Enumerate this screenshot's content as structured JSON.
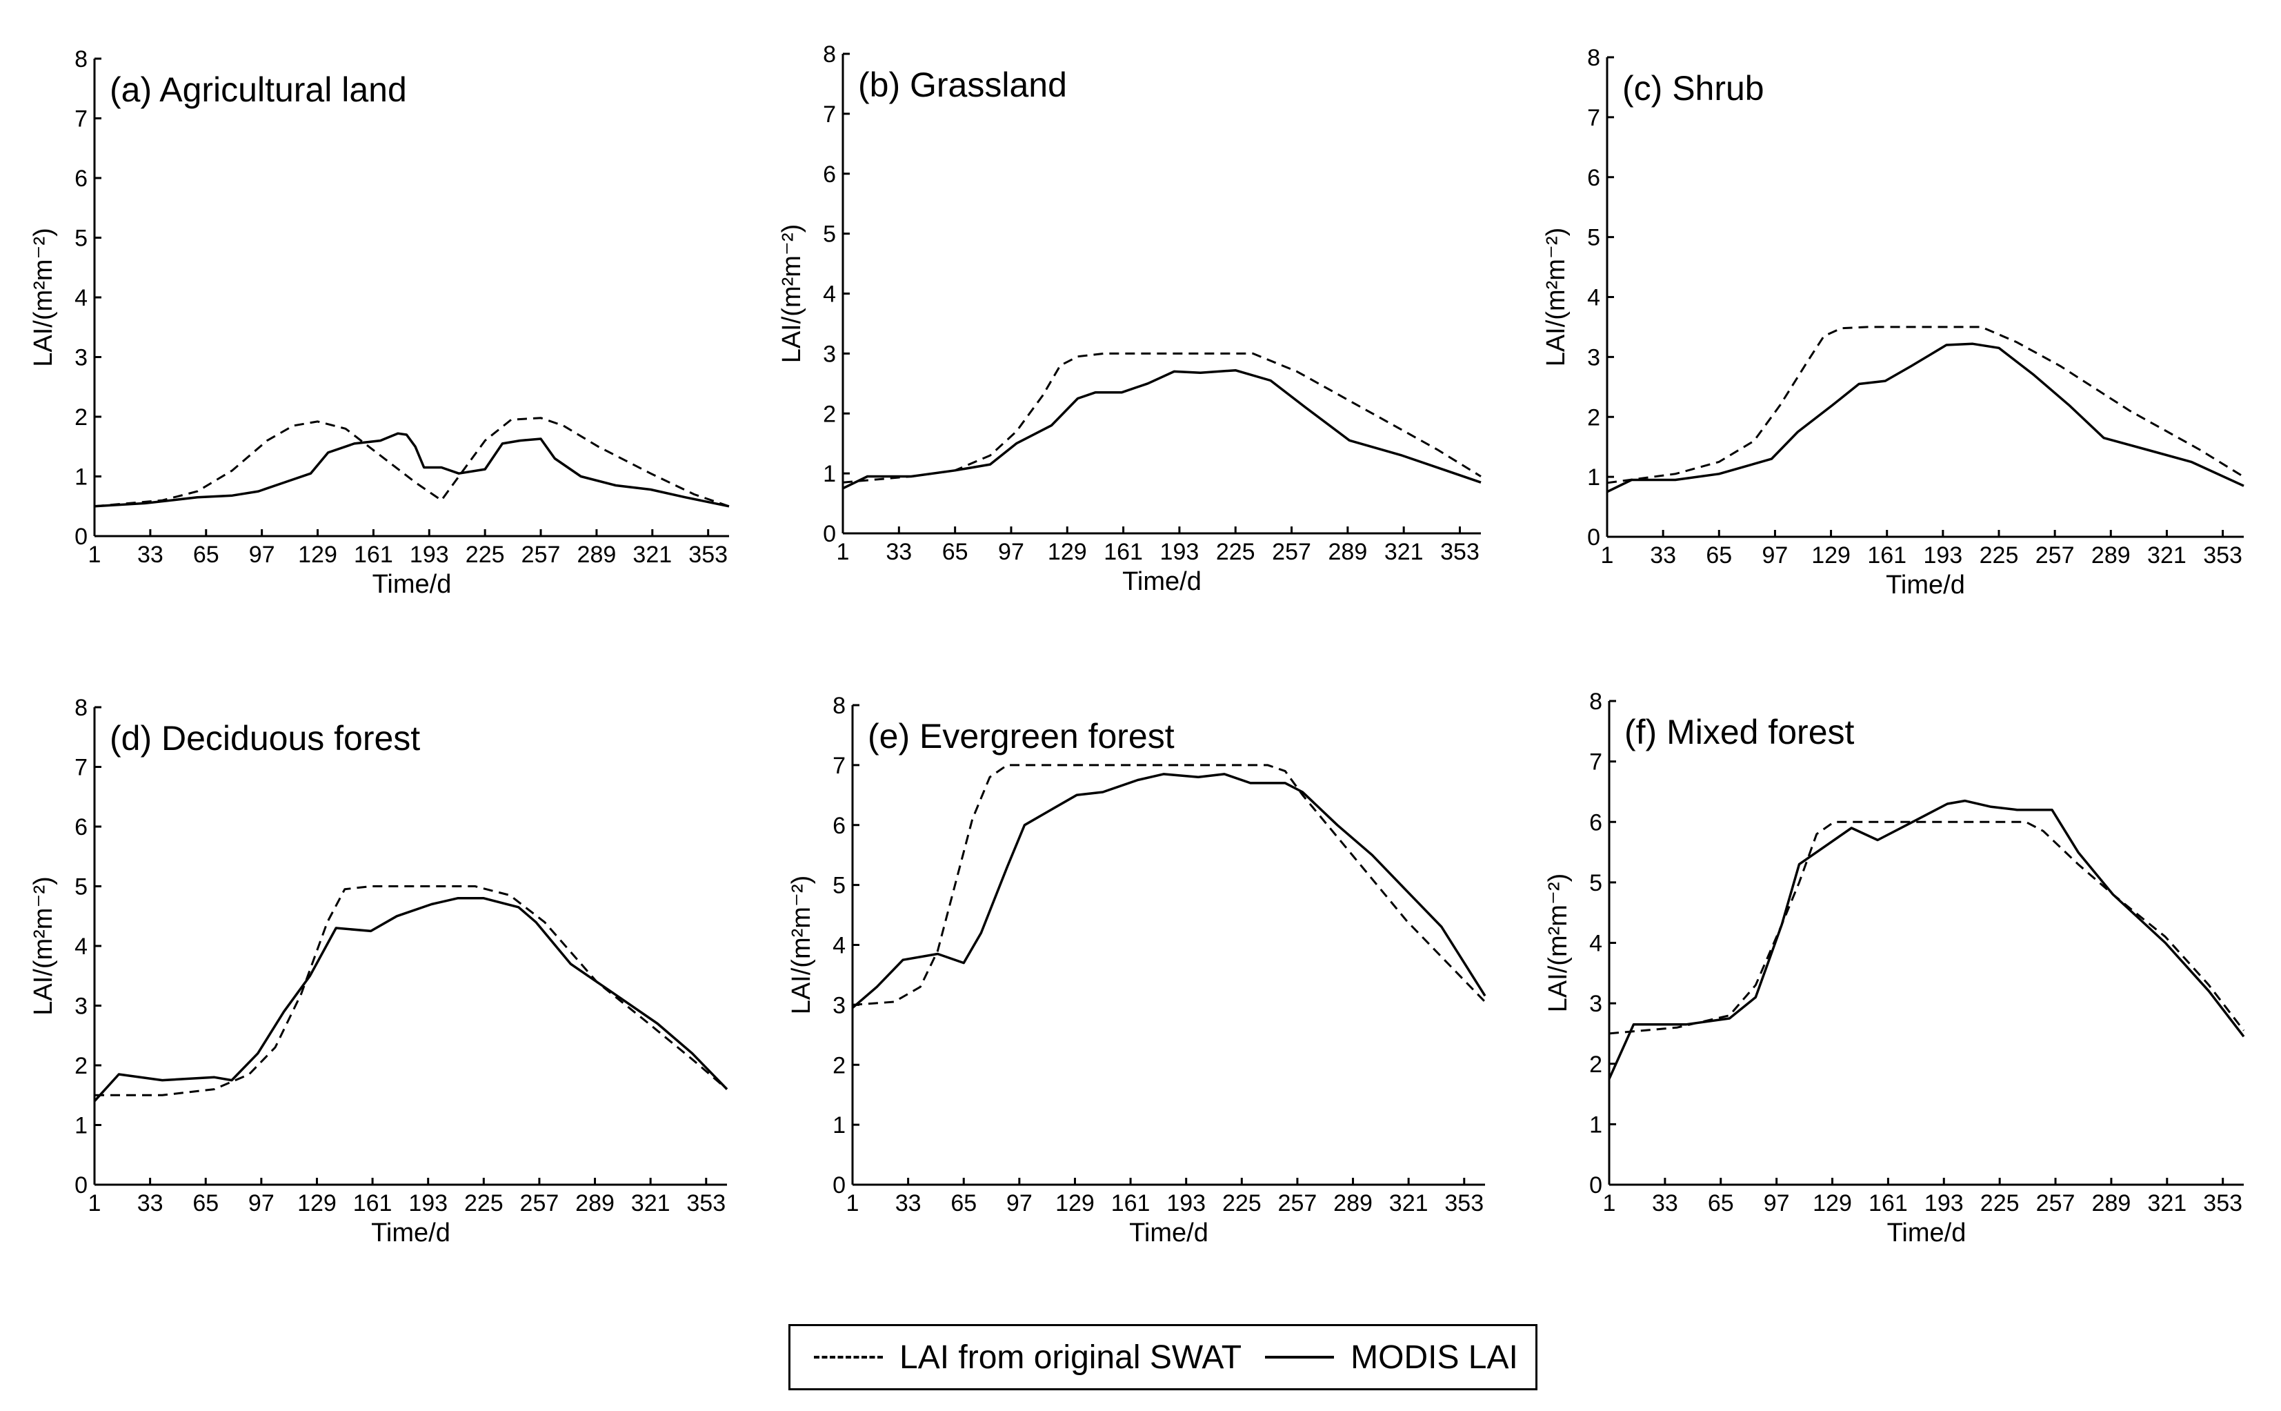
{
  "figure": {
    "legend": {
      "swat_label": "LAI from original SWAT",
      "modis_label": "MODIS LAI"
    }
  },
  "chart_data": [
    {
      "type": "line",
      "title": "(a) Agricultural land",
      "xlabel": "Time/d",
      "ylabel": "LAI/(m²m⁻²)",
      "xticks": [
        1,
        33,
        65,
        97,
        129,
        161,
        193,
        225,
        257,
        289,
        321,
        353
      ],
      "yticks": [
        0,
        1,
        2,
        3,
        4,
        5,
        6,
        7,
        8
      ],
      "xlim": [
        1,
        365
      ],
      "ylim": [
        0,
        8
      ],
      "series": [
        {
          "name": "LAI from original SWAT",
          "style": "dashed",
          "x": [
            1,
            40,
            60,
            80,
            100,
            115,
            129,
            145,
            165,
            185,
            200,
            210,
            225,
            240,
            257,
            270,
            290,
            320,
            345,
            365
          ],
          "y": [
            0.5,
            0.6,
            0.75,
            1.1,
            1.6,
            1.85,
            1.92,
            1.8,
            1.35,
            0.9,
            0.6,
            1.0,
            1.6,
            1.95,
            1.98,
            1.85,
            1.5,
            1.05,
            0.7,
            0.5
          ]
        },
        {
          "name": "MODIS LAI",
          "style": "solid",
          "x": [
            1,
            30,
            60,
            80,
            95,
            110,
            125,
            135,
            150,
            165,
            175,
            180,
            185,
            190,
            200,
            210,
            225,
            235,
            245,
            257,
            265,
            280,
            300,
            320,
            340,
            365
          ],
          "y": [
            0.5,
            0.55,
            0.65,
            0.68,
            0.75,
            0.9,
            1.05,
            1.4,
            1.55,
            1.6,
            1.72,
            1.7,
            1.5,
            1.15,
            1.15,
            1.05,
            1.12,
            1.55,
            1.6,
            1.63,
            1.3,
            1.0,
            0.85,
            0.78,
            0.65,
            0.5
          ]
        }
      ]
    },
    {
      "type": "line",
      "title": "(b) Grassland",
      "xlabel": "Time/d",
      "ylabel": "LAI/(m²m⁻²)",
      "xticks": [
        1,
        33,
        65,
        97,
        129,
        161,
        193,
        225,
        257,
        289,
        321,
        353
      ],
      "yticks": [
        0,
        1,
        2,
        3,
        4,
        5,
        6,
        7,
        8
      ],
      "xlim": [
        1,
        365
      ],
      "ylim": [
        0,
        8
      ],
      "series": [
        {
          "name": "LAI from original SWAT",
          "style": "dashed",
          "x": [
            1,
            40,
            65,
            85,
            100,
            115,
            125,
            135,
            150,
            180,
            210,
            235,
            260,
            300,
            340,
            365
          ],
          "y": [
            0.85,
            0.95,
            1.05,
            1.3,
            1.7,
            2.3,
            2.8,
            2.95,
            3.0,
            3.0,
            3.0,
            3.0,
            2.7,
            2.05,
            1.4,
            0.95
          ]
        },
        {
          "name": "MODIS LAI",
          "style": "solid",
          "x": [
            1,
            15,
            40,
            65,
            85,
            100,
            120,
            135,
            145,
            160,
            175,
            190,
            205,
            225,
            245,
            265,
            290,
            320,
            345,
            365
          ],
          "y": [
            0.75,
            0.95,
            0.95,
            1.05,
            1.15,
            1.5,
            1.8,
            2.25,
            2.35,
            2.35,
            2.5,
            2.7,
            2.68,
            2.72,
            2.55,
            2.1,
            1.55,
            1.3,
            1.05,
            0.85
          ]
        }
      ]
    },
    {
      "type": "line",
      "title": "(c) Shrub",
      "xlabel": "Time/d",
      "ylabel": "LAI/(m²m⁻²)",
      "xticks": [
        1,
        33,
        65,
        97,
        129,
        161,
        193,
        225,
        257,
        289,
        321,
        353
      ],
      "yticks": [
        0,
        1,
        2,
        3,
        4,
        5,
        6,
        7,
        8
      ],
      "xlim": [
        1,
        365
      ],
      "ylim": [
        0,
        8
      ],
      "series": [
        {
          "name": "LAI from original SWAT",
          "style": "dashed",
          "x": [
            1,
            40,
            65,
            85,
            100,
            115,
            125,
            135,
            150,
            180,
            215,
            235,
            260,
            300,
            340,
            365
          ],
          "y": [
            0.9,
            1.05,
            1.25,
            1.6,
            2.2,
            2.9,
            3.35,
            3.48,
            3.5,
            3.5,
            3.5,
            3.25,
            2.85,
            2.1,
            1.45,
            1.0
          ]
        },
        {
          "name": "MODIS LAI",
          "style": "solid",
          "x": [
            1,
            15,
            40,
            65,
            95,
            110,
            130,
            145,
            160,
            175,
            195,
            210,
            225,
            245,
            265,
            285,
            310,
            335,
            365
          ],
          "y": [
            0.75,
            0.95,
            0.95,
            1.05,
            1.3,
            1.75,
            2.2,
            2.55,
            2.6,
            2.85,
            3.2,
            3.22,
            3.15,
            2.7,
            2.2,
            1.65,
            1.45,
            1.25,
            0.85
          ]
        }
      ]
    },
    {
      "type": "line",
      "title": "(d) Deciduous forest",
      "xlabel": "Time/d",
      "ylabel": "LAI/(m²m⁻²)",
      "xticks": [
        1,
        33,
        65,
        97,
        129,
        161,
        193,
        225,
        257,
        289,
        321,
        353
      ],
      "yticks": [
        0,
        1,
        2,
        3,
        4,
        5,
        6,
        7,
        8
      ],
      "xlim": [
        1,
        365
      ],
      "ylim": [
        0,
        8
      ],
      "series": [
        {
          "name": "LAI from original SWAT",
          "style": "dashed",
          "x": [
            1,
            40,
            70,
            90,
            105,
            120,
            135,
            145,
            160,
            190,
            220,
            240,
            260,
            290,
            320,
            345,
            365
          ],
          "y": [
            1.5,
            1.5,
            1.6,
            1.85,
            2.3,
            3.2,
            4.4,
            4.95,
            5.0,
            5.0,
            5.0,
            4.85,
            4.4,
            3.4,
            2.7,
            2.1,
            1.6
          ]
        },
        {
          "name": "MODIS LAI",
          "style": "solid",
          "x": [
            1,
            15,
            40,
            70,
            80,
            95,
            110,
            125,
            140,
            160,
            175,
            195,
            210,
            225,
            245,
            255,
            275,
            300,
            325,
            345,
            365
          ],
          "y": [
            1.4,
            1.85,
            1.75,
            1.8,
            1.75,
            2.2,
            2.9,
            3.5,
            4.3,
            4.25,
            4.5,
            4.7,
            4.8,
            4.8,
            4.65,
            4.4,
            3.7,
            3.2,
            2.7,
            2.2,
            1.6
          ]
        }
      ]
    },
    {
      "type": "line",
      "title": "(e) Evergreen forest",
      "xlabel": "Time/d",
      "ylabel": "LAI/(m²m⁻²)",
      "xticks": [
        1,
        33,
        65,
        97,
        129,
        161,
        193,
        225,
        257,
        289,
        321,
        353
      ],
      "yticks": [
        0,
        1,
        2,
        3,
        4,
        5,
        6,
        7,
        8
      ],
      "xlim": [
        1,
        365
      ],
      "ylim": [
        0,
        8
      ],
      "series": [
        {
          "name": "LAI from original SWAT",
          "style": "dashed",
          "x": [
            1,
            25,
            40,
            50,
            60,
            70,
            80,
            90,
            100,
            130,
            160,
            200,
            240,
            250,
            260,
            280,
            300,
            320,
            340,
            365
          ],
          "y": [
            3.0,
            3.05,
            3.3,
            3.9,
            5.0,
            6.1,
            6.8,
            7.0,
            7.0,
            7.0,
            7.0,
            7.0,
            7.0,
            6.9,
            6.5,
            5.8,
            5.1,
            4.4,
            3.8,
            3.05
          ]
        },
        {
          "name": "MODIS LAI",
          "style": "solid",
          "x": [
            1,
            15,
            30,
            50,
            65,
            75,
            90,
            100,
            115,
            130,
            145,
            165,
            180,
            200,
            215,
            230,
            250,
            260,
            280,
            300,
            320,
            340,
            365
          ],
          "y": [
            2.95,
            3.3,
            3.75,
            3.85,
            3.7,
            4.2,
            5.3,
            6.0,
            6.25,
            6.5,
            6.55,
            6.75,
            6.85,
            6.8,
            6.85,
            6.7,
            6.7,
            6.55,
            6.0,
            5.5,
            4.9,
            4.3,
            3.15
          ]
        }
      ]
    },
    {
      "type": "line",
      "title": "(f) Mixed forest",
      "xlabel": "Time/d",
      "ylabel": "LAI/(m²m⁻²)",
      "xticks": [
        1,
        33,
        65,
        97,
        129,
        161,
        193,
        225,
        257,
        289,
        321,
        353
      ],
      "yticks": [
        0,
        1,
        2,
        3,
        4,
        5,
        6,
        7,
        8
      ],
      "xlim": [
        1,
        365
      ],
      "ylim": [
        0,
        8
      ],
      "series": [
        {
          "name": "LAI from original SWAT",
          "style": "dashed",
          "x": [
            1,
            40,
            70,
            85,
            100,
            110,
            120,
            130,
            160,
            200,
            240,
            250,
            270,
            290,
            320,
            345,
            365
          ],
          "y": [
            2.5,
            2.6,
            2.8,
            3.3,
            4.3,
            5.0,
            5.8,
            6.0,
            6.0,
            6.0,
            6.0,
            5.85,
            5.3,
            4.8,
            4.1,
            3.3,
            2.55
          ]
        },
        {
          "name": "MODIS LAI",
          "style": "solid",
          "x": [
            1,
            15,
            45,
            70,
            85,
            100,
            110,
            125,
            140,
            155,
            175,
            195,
            205,
            220,
            235,
            255,
            270,
            290,
            320,
            345,
            365
          ],
          "y": [
            1.75,
            2.65,
            2.65,
            2.75,
            3.1,
            4.3,
            5.3,
            5.6,
            5.9,
            5.7,
            6.0,
            6.3,
            6.35,
            6.25,
            6.2,
            6.2,
            5.5,
            4.8,
            4.0,
            3.2,
            2.45
          ]
        }
      ]
    }
  ]
}
